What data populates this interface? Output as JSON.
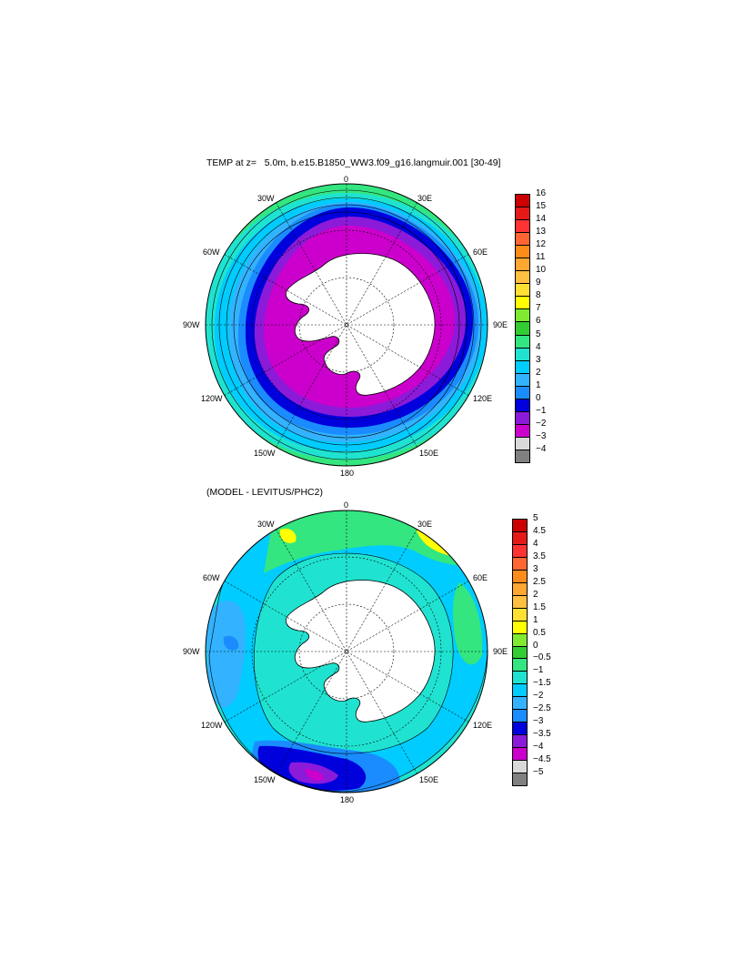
{
  "panel_top": {
    "title": "TEMP at z=   5.0m, b.e15.B1850_WW3.f09_g16.langmuir.001 [30-49]",
    "lon_labels": {
      "n": "0",
      "nne": "30E",
      "ene": "60E",
      "e": "90E",
      "ese": "120E",
      "sse": "150E",
      "s": "180",
      "ssw": "150W",
      "wsw": "120W",
      "w": "90W",
      "wnw": "60W",
      "nnw": "30W"
    },
    "colorbar": {
      "labels": [
        "16",
        "15",
        "14",
        "13",
        "12",
        "11",
        "10",
        "9",
        "8",
        "7",
        "6",
        "5",
        "4",
        "3",
        "2",
        "1",
        "0",
        "−1",
        "−2",
        "−3",
        "−4"
      ],
      "colors": [
        "#cc0000",
        "#e61919",
        "#ff3333",
        "#ff6633",
        "#ff8c1a",
        "#ffa633",
        "#ffbf40",
        "#ffe033",
        "#ffff00",
        "#7fea2f",
        "#33cc33",
        "#33e680",
        "#1fe3d0",
        "#00ccff",
        "#33b3ff",
        "#1a8cff",
        "#0000dd",
        "#8c1ad9",
        "#cc00cc",
        "#d9d9d9",
        "#808080"
      ]
    }
  },
  "panel_bottom": {
    "title": "(MODEL - LEVITUS/PHC2)",
    "lon_labels": {
      "n": "0",
      "nne": "30E",
      "ene": "60E",
      "e": "90E",
      "ese": "120E",
      "sse": "150E",
      "s": "180",
      "ssw": "150W",
      "wsw": "120W",
      "w": "90W",
      "wnw": "60W",
      "nnw": "30W"
    },
    "colorbar": {
      "labels": [
        "5",
        "4.5",
        "4",
        "3.5",
        "3",
        "2.5",
        "2",
        "1.5",
        "1",
        "0.5",
        "0",
        "−0.5",
        "−1",
        "−1.5",
        "−2",
        "−2.5",
        "−3",
        "−3.5",
        "−4",
        "−4.5",
        "−5"
      ],
      "colors": [
        "#cc0000",
        "#e61919",
        "#ff3333",
        "#ff6633",
        "#ff8c1a",
        "#ffa633",
        "#ffbf40",
        "#ffe033",
        "#ffff00",
        "#7fea2f",
        "#33cc33",
        "#33e680",
        "#1fe3d0",
        "#00ccff",
        "#33b3ff",
        "#1a8cff",
        "#0000dd",
        "#8c1ad9",
        "#cc00cc",
        "#d9d9d9",
        "#808080"
      ]
    }
  }
}
